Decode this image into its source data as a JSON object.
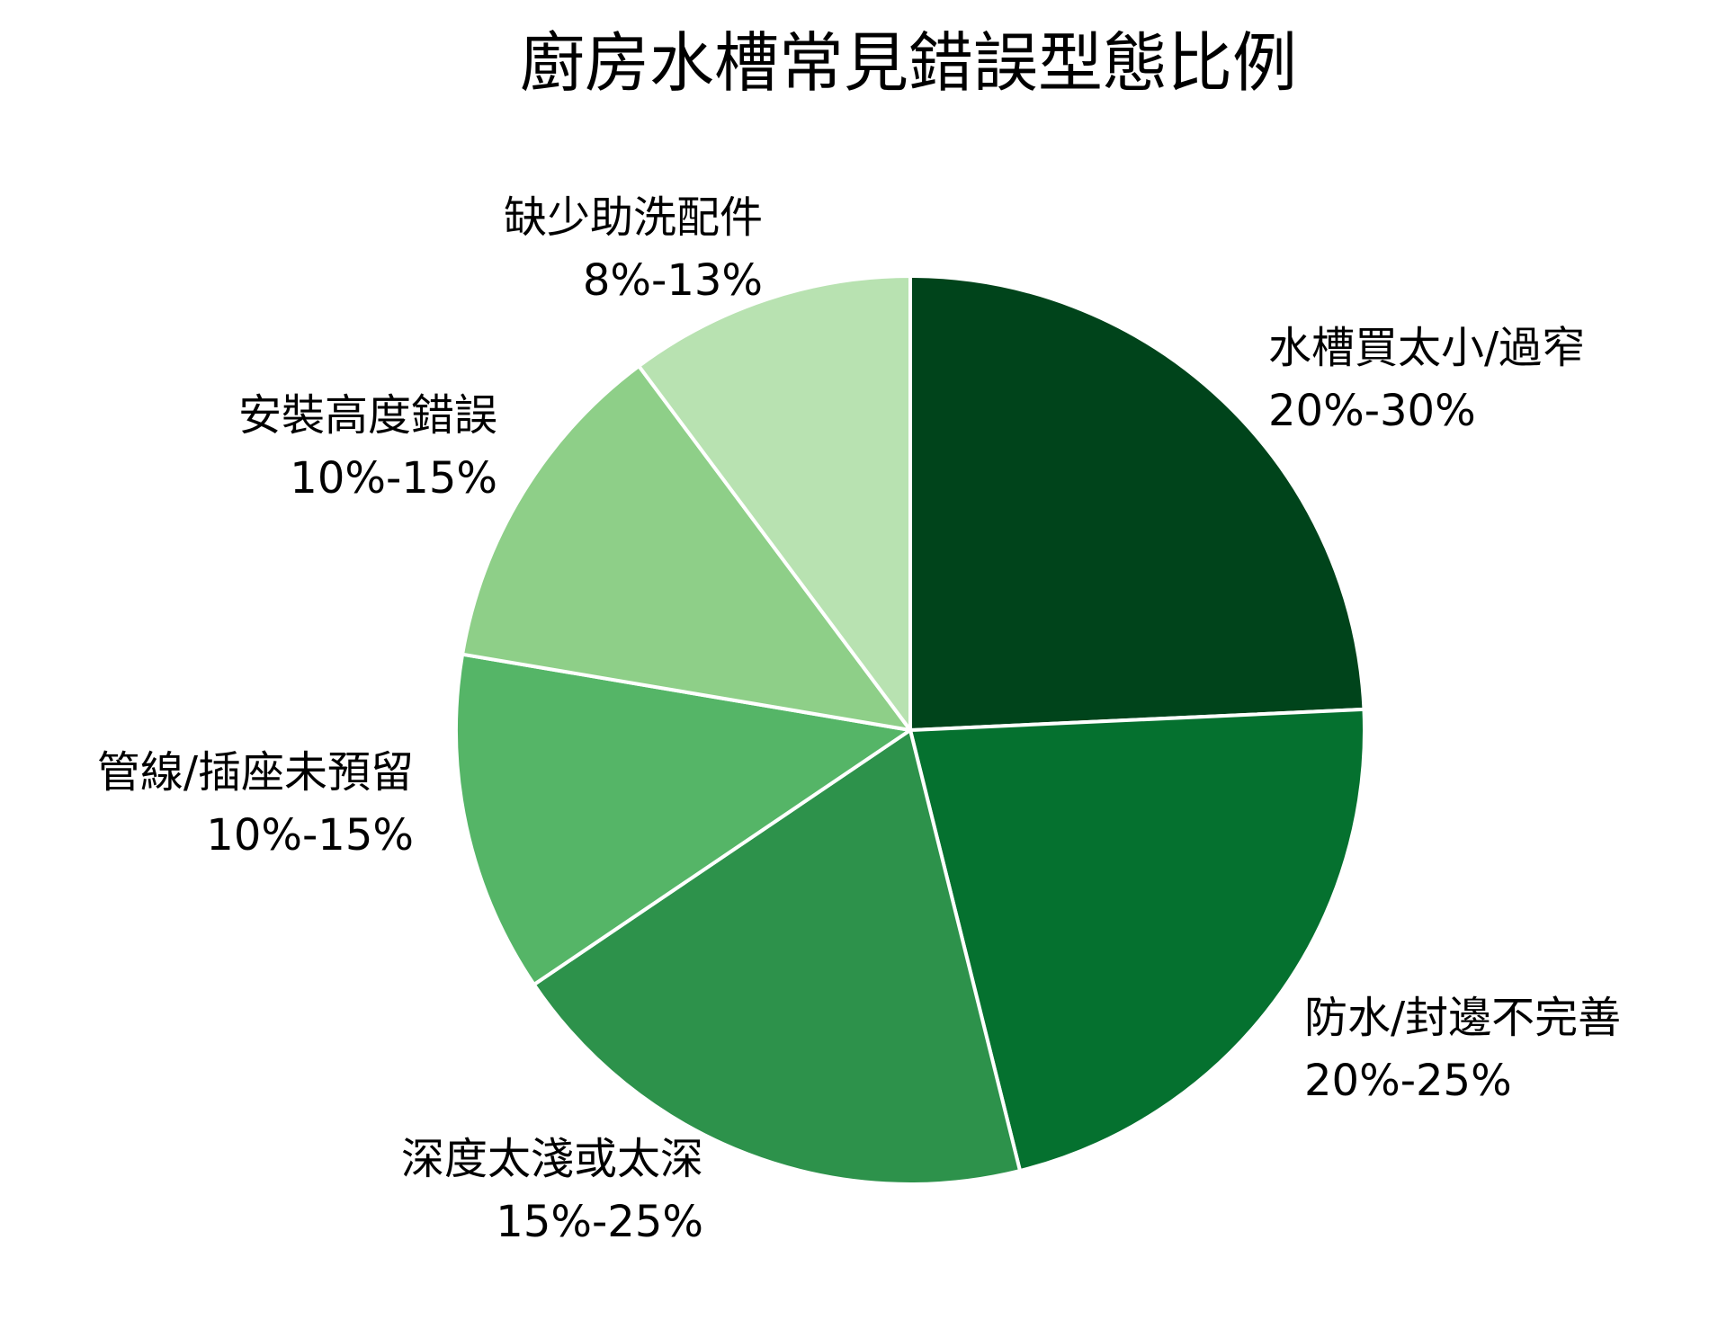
{
  "chart_data": {
    "type": "pie",
    "title": "廚房水槽常見錯誤型態比例",
    "slices": [
      {
        "label": "水槽買太小/過窄",
        "range": "20%-30%",
        "value": 25,
        "color": "#00441b"
      },
      {
        "label": "防水/封邊不完善",
        "range": "20%-25%",
        "value": 22.5,
        "color": "#05712f"
      },
      {
        "label": "深度太淺或太深",
        "range": "15%-25%",
        "value": 20,
        "color": "#2d924b"
      },
      {
        "label": "管線/插座未預留",
        "range": "10%-15%",
        "value": 12.5,
        "color": "#55b567"
      },
      {
        "label": "安裝高度錯誤",
        "range": "10%-15%",
        "value": 12.5,
        "color": "#8ecf88"
      },
      {
        "label": "缺少助洗配件",
        "range": "8%-13%",
        "value": 10.5,
        "color": "#b8e2b1"
      }
    ]
  }
}
